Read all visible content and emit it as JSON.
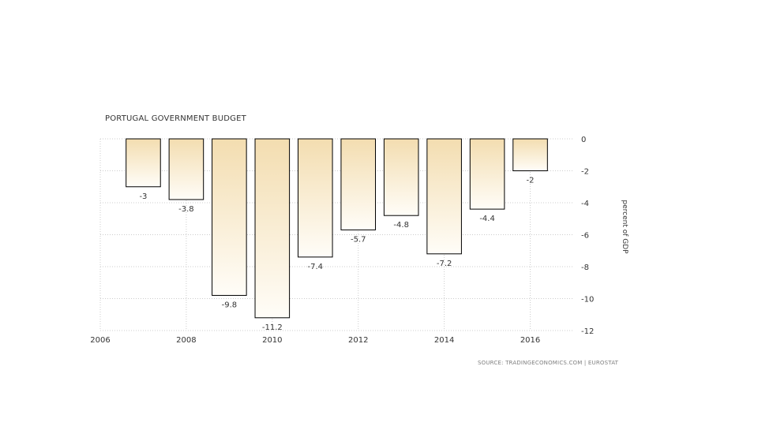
{
  "chart_data": {
    "type": "bar",
    "title": "PORTUGAL GOVERNMENT BUDGET",
    "source": "SOURCE: TRADINGECONOMICS.COM | EUROSTAT",
    "ylabel": "percent of GDP",
    "xlabel": "",
    "x": [
      2007,
      2008,
      2009,
      2010,
      2011,
      2012,
      2013,
      2014,
      2015,
      2016
    ],
    "values": [
      -3,
      -3.8,
      -9.8,
      -11.2,
      -7.4,
      -5.7,
      -4.8,
      -7.2,
      -4.4,
      -2
    ],
    "data_labels": [
      "-3",
      "-3.8",
      "-9.8",
      "-11.2",
      "-7.4",
      "-5.7",
      "-4.8",
      "-7.2",
      "-4.4",
      "-2"
    ],
    "x_ticks": [
      "2006",
      "2008",
      "2010",
      "2012",
      "2014",
      "2016"
    ],
    "y_ticks": [
      "0",
      "-2",
      "-4",
      "-6",
      "-8",
      "-10",
      "-12"
    ],
    "xlim": [
      2006,
      2017
    ],
    "ylim": [
      -12,
      0
    ],
    "grid": true,
    "y_axis_side": "right",
    "colors": {
      "bar_top": "#f3ddb0",
      "bar_bottom": "#fffdf8",
      "bar_edge": "#000000",
      "grid": "#cccccc",
      "text": "#333333"
    }
  }
}
